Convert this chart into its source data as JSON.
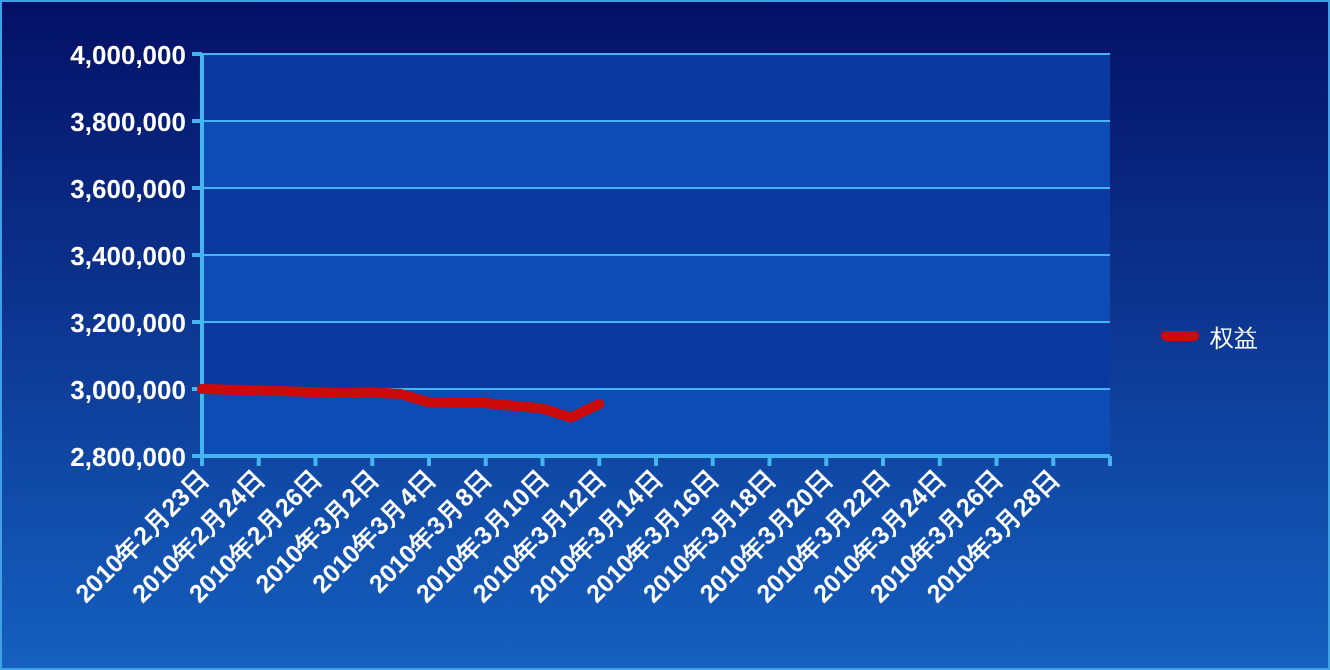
{
  "chart_data": {
    "type": "line",
    "categories": [
      "2010年2月23日",
      null,
      "2010年2月24日",
      null,
      "2010年2月26日",
      null,
      "2010年3月2日",
      null,
      "2010年3月4日",
      null,
      "2010年3月8日",
      null,
      "2010年3月10日",
      null,
      "2010年3月12日",
      null,
      "2010年3月14日",
      null,
      "2010年3月16日",
      null,
      "2010年3月18日",
      null,
      "2010年3月20日",
      null,
      "2010年3月22日",
      null,
      "2010年3月24日",
      null,
      "2010年3月26日",
      null,
      "2010年3月28日",
      null
    ],
    "series": [
      {
        "name": "权益",
        "color": "#cc0a0a",
        "values": [
          3000000,
          2998000,
          2996000,
          2993000,
          2990000,
          2988000,
          2990000,
          2985000,
          2960000,
          2958000,
          2958000,
          2950000,
          2942000,
          2915000,
          2955000,
          null,
          null,
          null,
          null,
          null,
          null,
          null,
          null,
          null,
          null,
          null,
          null,
          null,
          null,
          null,
          null,
          null
        ]
      }
    ],
    "ylim": [
      2800000,
      4000000
    ],
    "yticks": [
      {
        "value": 2800000,
        "label": "2,800,000"
      },
      {
        "value": 3000000,
        "label": "3,000,000"
      },
      {
        "value": 3200000,
        "label": "3,200,000"
      },
      {
        "value": 3400000,
        "label": "3,400,000"
      },
      {
        "value": 3600000,
        "label": "3,600,000"
      },
      {
        "value": 3800000,
        "label": "3,800,000"
      },
      {
        "value": 4000000,
        "label": "4,000,000"
      }
    ],
    "bands": [
      {
        "axis": "y",
        "from": 2800000,
        "to": 3000000,
        "color": "#0d4bb5"
      },
      {
        "axis": "y",
        "from": 3000000,
        "to": 3200000,
        "color": "#0a3aa0"
      },
      {
        "axis": "y",
        "from": 3200000,
        "to": 3400000,
        "color": "#0d4bb5"
      },
      {
        "axis": "y",
        "from": 3400000,
        "to": 3600000,
        "color": "#0a3aa0"
      },
      {
        "axis": "y",
        "from": 3600000,
        "to": 3800000,
        "color": "#0d4bb5"
      },
      {
        "axis": "y",
        "from": 3800000,
        "to": 4000000,
        "color": "#0a3aa0"
      }
    ],
    "grid": "y",
    "legend": "right",
    "marker": "none",
    "line_style": "solid"
  }
}
